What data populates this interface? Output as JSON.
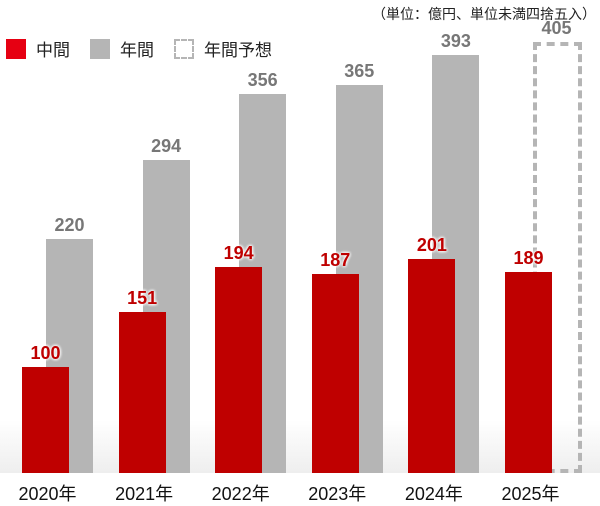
{
  "unit_note": "（単位：億円、単位未満四捨五入）",
  "legend": [
    {
      "label": "中間",
      "style": "red"
    },
    {
      "label": "年間",
      "style": "gray"
    },
    {
      "label": "年間予想",
      "style": "dash"
    }
  ],
  "colors": {
    "interim": "#bf0000",
    "annual": "#b5b5b5",
    "forecast_border": "#b5b5b5",
    "legend_red": "#e60012"
  },
  "chart_data": {
    "type": "bar",
    "title": "",
    "xlabel": "",
    "ylabel": "",
    "unit": "億円",
    "categories": [
      "2020年",
      "2021年",
      "2022年",
      "2023年",
      "2024年",
      "2025年"
    ],
    "series": [
      {
        "name": "中間",
        "values": [
          100,
          151,
          194,
          187,
          201,
          189
        ]
      },
      {
        "name": "年間",
        "values": [
          220,
          294,
          356,
          365,
          393,
          null
        ]
      },
      {
        "name": "年間予想",
        "values": [
          null,
          null,
          null,
          null,
          null,
          405
        ]
      }
    ],
    "grid": false,
    "legend_position": "top-left",
    "ylim": [
      0,
      420
    ]
  }
}
